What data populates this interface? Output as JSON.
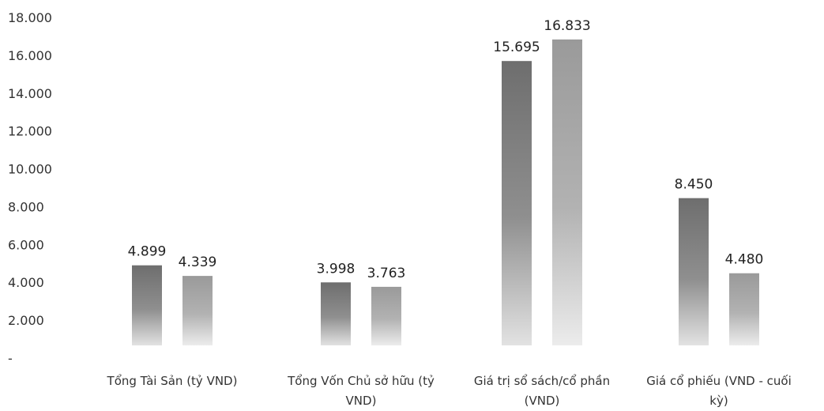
{
  "chart_data": {
    "type": "bar",
    "categories": [
      [
        "Tổng Tài Sản (tỷ VND)"
      ],
      [
        "Tổng Vốn Chủ sở hữu (tỷ",
        "VND)"
      ],
      [
        "Giá trị sổ sách/cổ phần",
        "(VND)"
      ],
      [
        "Giá cổ phiếu (VND - cuối",
        "kỳ)"
      ]
    ],
    "series": [
      {
        "values": [
          4899,
          3998,
          15695,
          8450
        ],
        "labels": [
          "4.899",
          "3.998",
          "15.695",
          "8.450"
        ],
        "color": "#6e6e6e"
      },
      {
        "values": [
          4339,
          3763,
          16833,
          4480
        ],
        "labels": [
          "4.339",
          "3.763",
          "16.833",
          "4.480"
        ],
        "color": "#9a9a9a"
      }
    ],
    "yticks": [
      {
        "value": 18000,
        "label": "18.000"
      },
      {
        "value": 16000,
        "label": "16.000"
      },
      {
        "value": 14000,
        "label": "14.000"
      },
      {
        "value": 12000,
        "label": "12.000"
      },
      {
        "value": 10000,
        "label": "10.000"
      },
      {
        "value": 8000,
        "label": "8.000"
      },
      {
        "value": 6000,
        "label": "6.000"
      },
      {
        "value": 4000,
        "label": "4.000"
      },
      {
        "value": 2000,
        "label": "2.000"
      },
      {
        "value": 0,
        "label": "-"
      }
    ],
    "ylim": [
      0,
      18000
    ],
    "grid": false,
    "legend": "none"
  }
}
